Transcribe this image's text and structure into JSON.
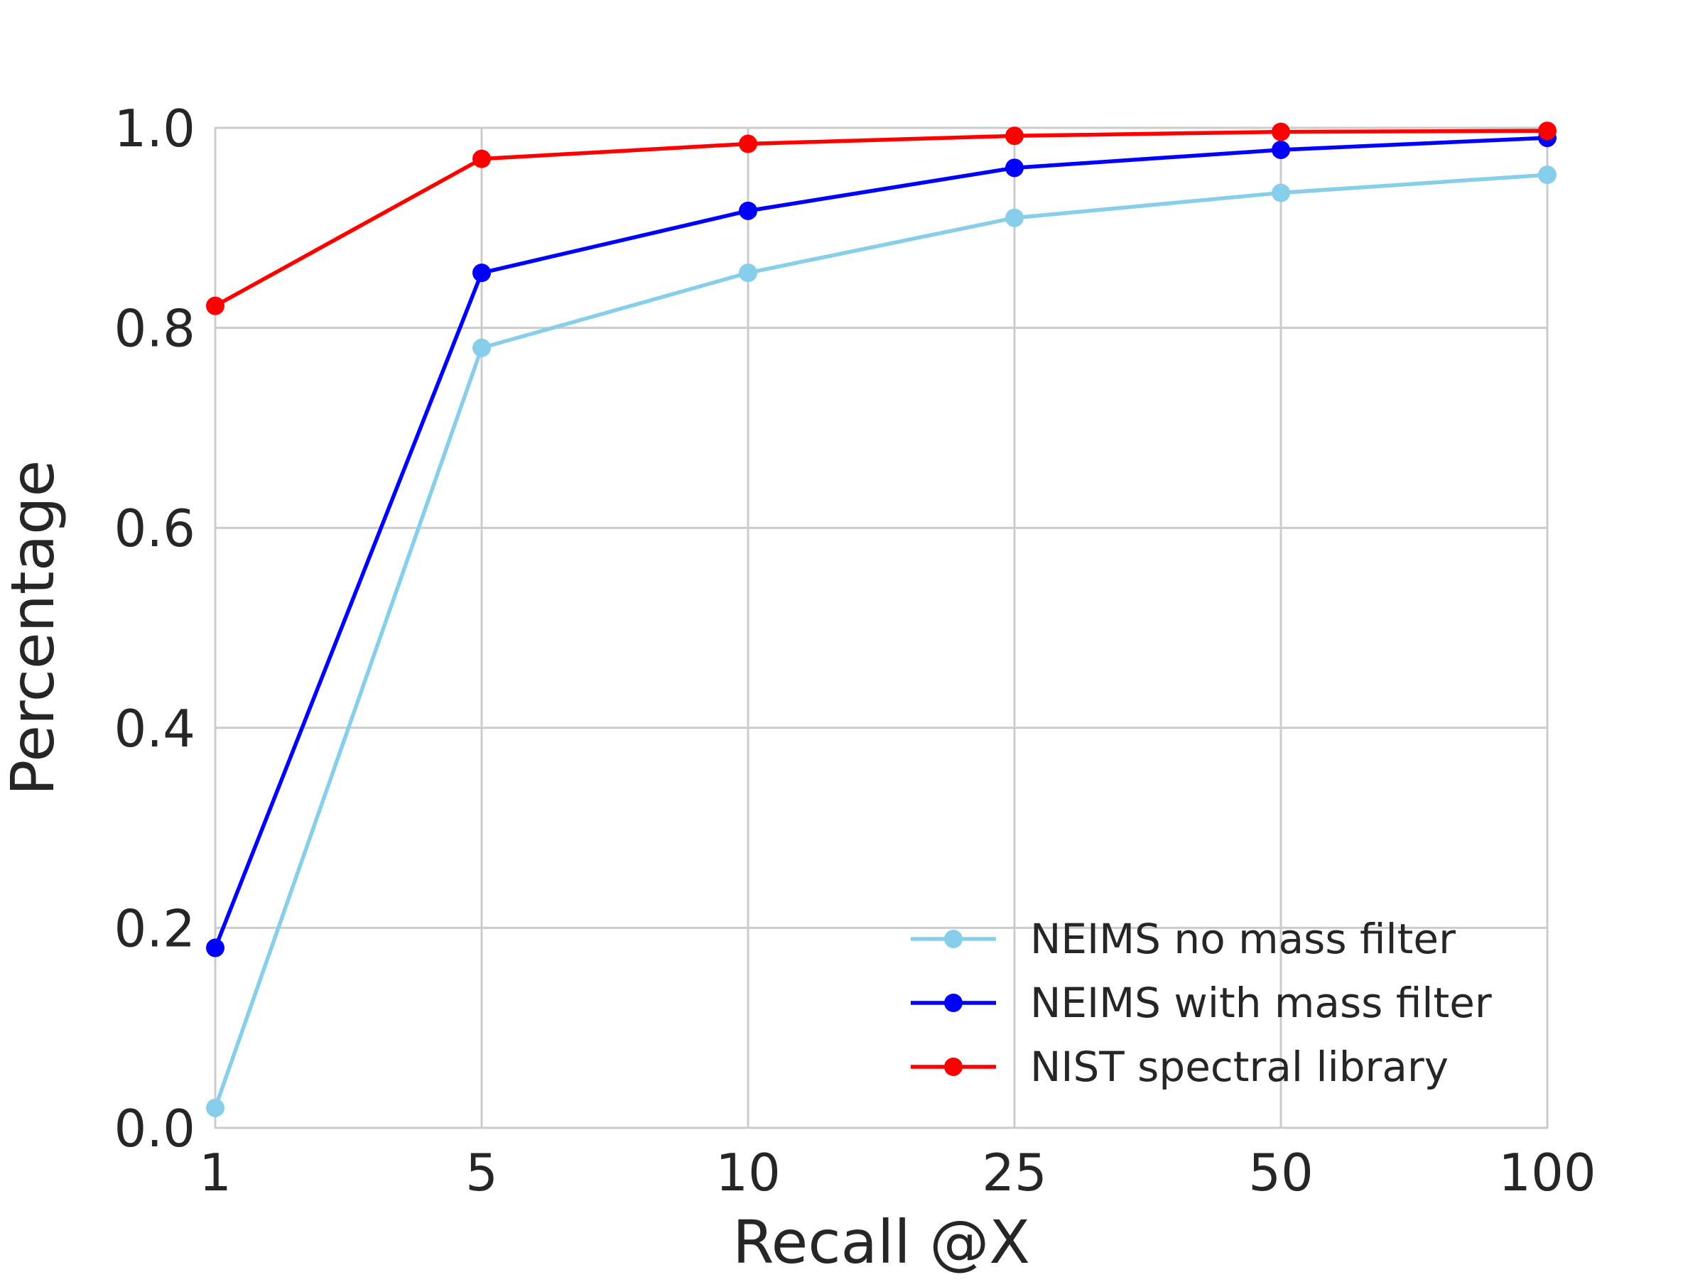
{
  "chart_data": {
    "type": "line",
    "xlabel": "Recall @X",
    "ylabel": "Percentage",
    "categories": [
      "1",
      "5",
      "10",
      "25",
      "50",
      "100"
    ],
    "ylim": [
      0.0,
      1.0
    ],
    "yticks": [
      "0.0",
      "0.2",
      "0.4",
      "0.6",
      "0.8",
      "1.0"
    ],
    "grid": true,
    "legend_position": "bottom-right",
    "series": [
      {
        "name": "NEIMS no mass filter",
        "color": "#87ceeb",
        "marker": "circle",
        "values": [
          0.02,
          0.78,
          0.855,
          0.91,
          0.935,
          0.953
        ]
      },
      {
        "name": "NEIMS with mass filter",
        "color": "#0000ff",
        "marker": "circle",
        "values": [
          0.18,
          0.855,
          0.917,
          0.96,
          0.978,
          0.99
        ]
      },
      {
        "name": "NIST spectral library",
        "color": "#ff0000",
        "marker": "circle",
        "values": [
          0.822,
          0.969,
          0.984,
          0.992,
          0.996,
          0.997
        ]
      }
    ]
  }
}
